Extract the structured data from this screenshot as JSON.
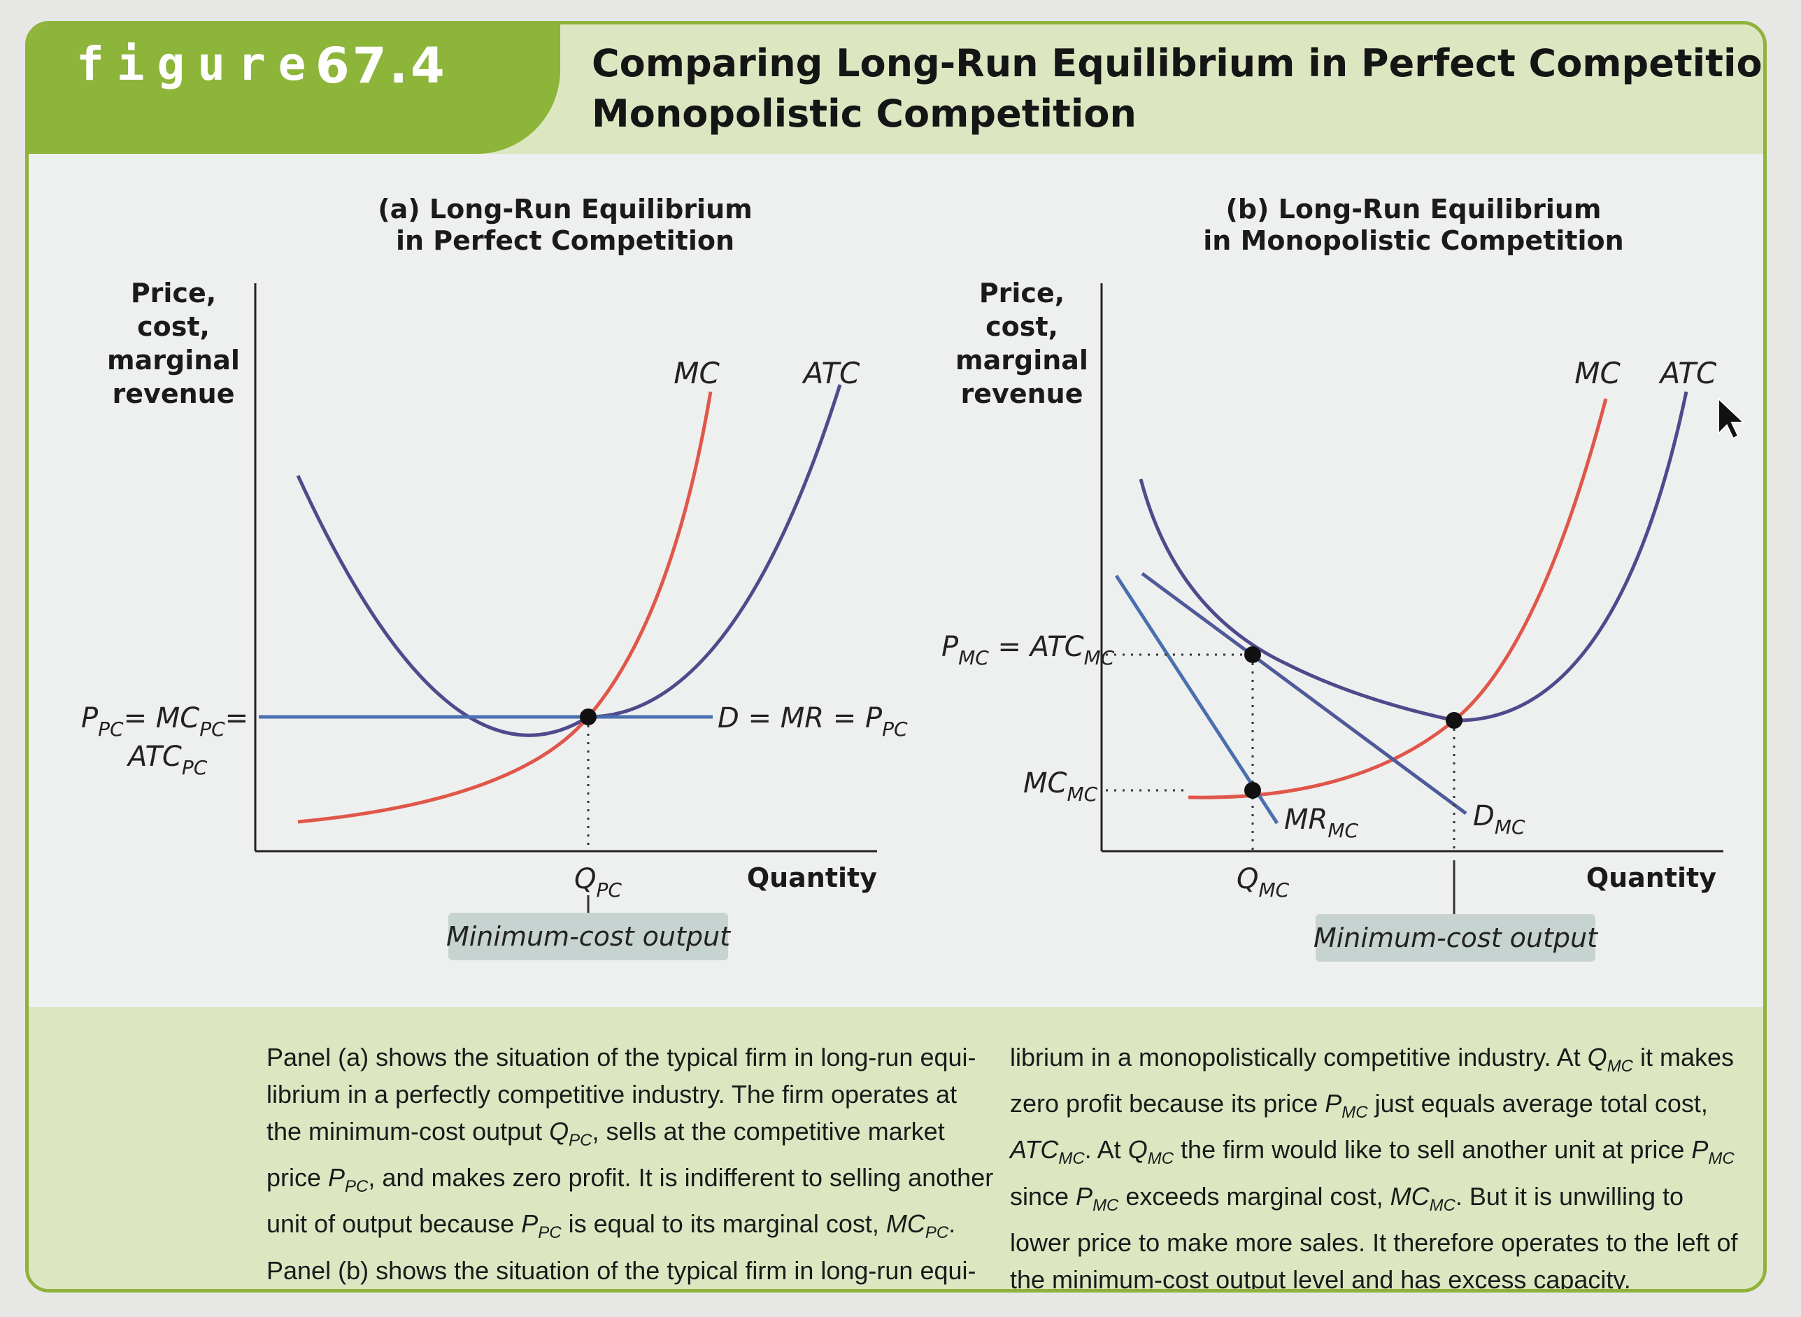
{
  "header": {
    "figure_word": "figure",
    "figure_number": "67.4",
    "title_line1": "Comparing Long-Run Equilibrium in Perfect Competition and",
    "title_line2": "Monopolistic Competition"
  },
  "panel_a": {
    "title_line1": "(a) Long-Run Equilibrium",
    "title_line2": "in Perfect Competition",
    "ylabel": [
      "Price,",
      "cost,",
      "marginal",
      "revenue"
    ],
    "xlabel": "Quantity",
    "mc_label": "MC",
    "atc_label": "ATC",
    "demand_label": "D = MR = P",
    "demand_sub": "PC",
    "price_label_main": "P",
    "price_label_sub1": "PC",
    "price_label_mid": "= MC",
    "price_label_sub2": "PC",
    "price_label_end": "=",
    "price_label2_main": "ATC",
    "price_label2_sub": "PC",
    "q_label": "Q",
    "q_sub": "PC",
    "min_cost_label": "Minimum-cost output"
  },
  "panel_b": {
    "title_line1": "(b) Long-Run Equilibrium",
    "title_line2": "in Monopolistic Competition",
    "ylabel": [
      "Price,",
      "cost,",
      "marginal",
      "revenue"
    ],
    "xlabel": "Quantity",
    "mc_label": "MC",
    "atc_label": "ATC",
    "p_label_main": "P",
    "p_label_sub": "MC",
    "p_label_mid": " = ATC",
    "p_label_sub2": "MC",
    "mcmc_main": "MC",
    "mcmc_sub": "MC",
    "mr_main": "MR",
    "mr_sub": "MC",
    "d_main": "D",
    "d_sub": "MC",
    "q_label": "Q",
    "q_sub": "MC",
    "min_cost_label": "Minimum-cost output"
  },
  "caption": {
    "left_lines": [
      "Panel (a) shows the situation of the typical firm in long-run equi-",
      "librium in a perfectly competitive industry. The firm operates at",
      "the minimum-cost output Q_PC, sells at the competitive market",
      "price P_PC, and makes zero profit. It is indifferent to selling another",
      "unit of output because P_PC is equal to its marginal cost, MC_PC.",
      "Panel (b) shows the situation of the typical firm in long-run equi-"
    ],
    "right_lines": [
      "librium in a monopolistically competitive industry. At Q_MC it makes",
      "zero profit because its price P_MC just equals average total cost,",
      "ATC_MC. At Q_MC the firm would like to sell another unit at price P_MC",
      "since P_MC exceeds marginal cost, MC_MC. But it is unwilling to",
      "lower price to make more sales. It therefore operates to the left of",
      "the minimum-cost output level and has excess capacity."
    ]
  },
  "colors": {
    "mc_curve": "#e0574a",
    "atc_curve": "#4f4a8c",
    "demand_curve": "#4a6fb0",
    "accent_green": "#8db53a",
    "caption_band": "#dce7c2",
    "label_box": "#c7d3d0"
  }
}
